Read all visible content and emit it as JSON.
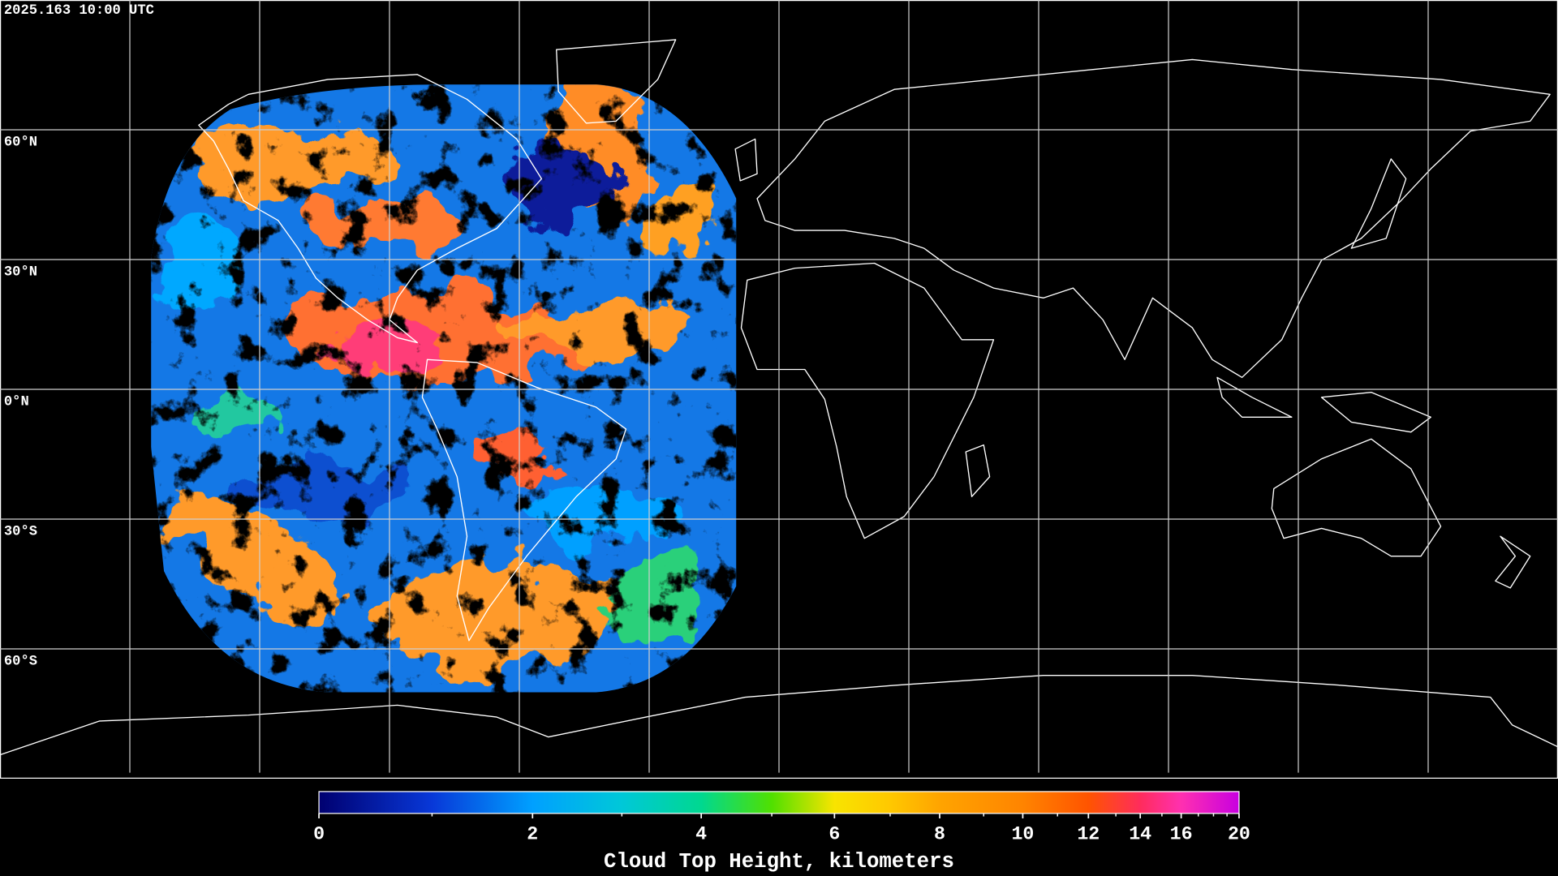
{
  "timestamp": "2025.163 10:00 UTC",
  "latitude_labels": [
    "60°N",
    "30°N",
    "0°N",
    "30°S",
    "60°S"
  ],
  "colorbar": {
    "label": "Cloud Top Height, kilometers",
    "lim": [
      0,
      20
    ],
    "ticks": [
      0,
      2,
      4,
      6,
      8,
      10,
      12,
      14,
      16,
      20
    ],
    "minor_ticks": [
      1,
      3,
      5,
      7,
      9,
      11,
      13,
      15,
      17,
      18,
      19
    ]
  }
}
